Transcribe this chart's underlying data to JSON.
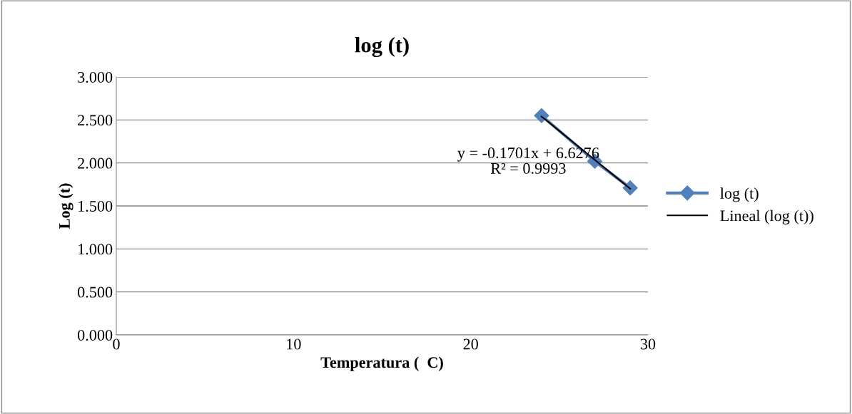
{
  "chart_data": {
    "type": "line",
    "title": "log (t)",
    "xlabel": "Temperatura (  C)",
    "ylabel": "Log (t)",
    "series": [
      {
        "name": "log (t)",
        "color": "#4f81bd",
        "marker": "diamond",
        "x": [
          24,
          27,
          29
        ],
        "values": [
          2.55,
          2.02,
          1.71
        ]
      },
      {
        "name": "Lineal (log (t))",
        "color": "#000000",
        "marker": "none",
        "x": [
          24,
          29
        ],
        "values": [
          2.54,
          1.7
        ]
      }
    ],
    "annotations": [
      "y = -0.1701x + 6.6276\nR² = 0.9993"
    ],
    "xlim": [
      0,
      30
    ],
    "xticks": [
      0,
      10,
      20,
      30
    ],
    "ylim": [
      0,
      3
    ],
    "yticks": [
      {
        "value": 0,
        "label": "0.000"
      },
      {
        "value": 0.5,
        "label": "0.500"
      },
      {
        "value": 1,
        "label": "1.000"
      },
      {
        "value": 1.5,
        "label": "1.500"
      },
      {
        "value": 2,
        "label": "2.000"
      },
      {
        "value": 2.5,
        "label": "2.500"
      },
      {
        "value": 3,
        "label": "3.000"
      }
    ],
    "grid": "y",
    "legend": "right"
  }
}
